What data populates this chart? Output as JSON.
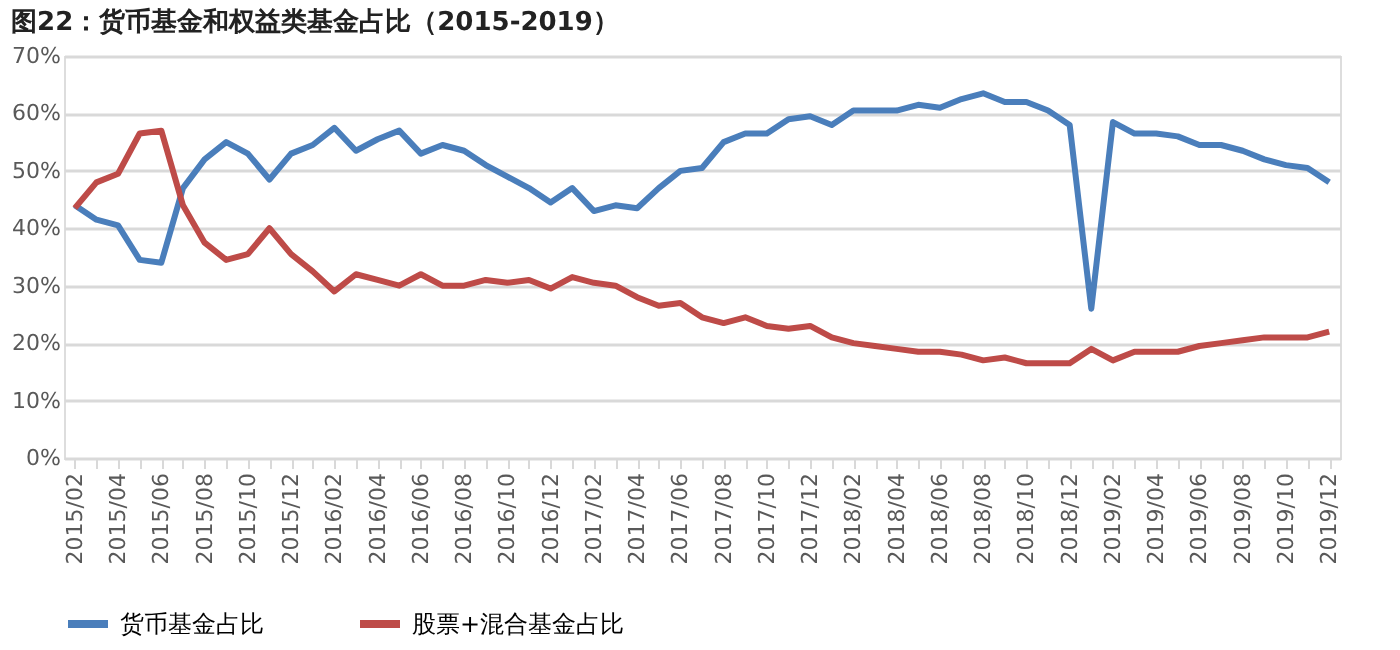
{
  "chart_data": {
    "type": "line",
    "title": "图22：货币基金和权益类基金占比（2015-2019）",
    "categories": [
      "2015/02",
      null,
      "2015/04",
      null,
      "2015/06",
      null,
      "2015/08",
      null,
      "2015/10",
      null,
      "2015/12",
      null,
      "2016/02",
      null,
      "2016/04",
      null,
      "2016/06",
      null,
      "2016/08",
      null,
      "2016/10",
      null,
      "2016/12",
      null,
      "2017/02",
      null,
      "2017/04",
      null,
      "2017/06",
      null,
      "2017/08",
      null,
      "2017/10",
      null,
      "2017/12",
      null,
      "2018/02",
      null,
      "2018/04",
      null,
      "2018/06",
      null,
      "2018/08",
      null,
      "2018/10",
      null,
      "2018/12",
      null,
      "2019/02",
      null,
      "2019/04",
      null,
      "2019/06",
      null,
      "2019/08",
      null,
      "2019/10",
      null,
      "2019/12"
    ],
    "series": [
      {
        "name": "货币基金占比",
        "color": "#4a7ebb",
        "values": [
          44,
          41.5,
          40.5,
          34.5,
          34,
          47,
          52,
          55,
          53,
          48.5,
          53,
          54.5,
          57.5,
          53.5,
          55.5,
          57,
          53,
          54.5,
          53.5,
          51,
          49,
          47,
          44.5,
          47,
          43,
          44,
          43.5,
          47,
          50,
          50.5,
          55,
          56.5,
          56.5,
          59,
          59.5,
          58,
          60.5,
          60.5,
          60.5,
          61.5,
          61,
          62.5,
          63.5,
          62,
          62,
          60.5,
          58,
          26,
          58.5,
          56.5,
          56.5,
          56,
          54.5,
          54.5,
          53.5,
          52,
          51,
          50.5,
          48
        ]
      },
      {
        "name": "股票+混合基金占比",
        "color": "#be4b48",
        "values": [
          43.5,
          48,
          49.5,
          56.5,
          57,
          44,
          37.5,
          34.5,
          35.5,
          40,
          35.5,
          32.5,
          29,
          32,
          31,
          30,
          32,
          30,
          30,
          31,
          30.5,
          31,
          29.5,
          31.5,
          30.5,
          30,
          28,
          26.5,
          27,
          24.5,
          23.5,
          24.5,
          23,
          22.5,
          23,
          21,
          20,
          19.5,
          19,
          18.5,
          18.5,
          18,
          17,
          17.5,
          16.5,
          16.5,
          16.5,
          19,
          17,
          18.5,
          18.5,
          18.5,
          19.5,
          20,
          20.5,
          21,
          21,
          21,
          22
        ]
      }
    ],
    "ylim": [
      0,
      70
    ],
    "yticks": [
      {
        "value": 0,
        "label": "0%"
      },
      {
        "value": 10,
        "label": "10%"
      },
      {
        "value": 20,
        "label": "20%"
      },
      {
        "value": 30,
        "label": "30%"
      },
      {
        "value": 40,
        "label": "40%"
      },
      {
        "value": 50,
        "label": "50%"
      },
      {
        "value": 60,
        "label": "60%"
      },
      {
        "value": 70,
        "label": "70%"
      }
    ],
    "grid": "y",
    "legend": "bottom",
    "marker": "none",
    "line_style": "solid"
  }
}
